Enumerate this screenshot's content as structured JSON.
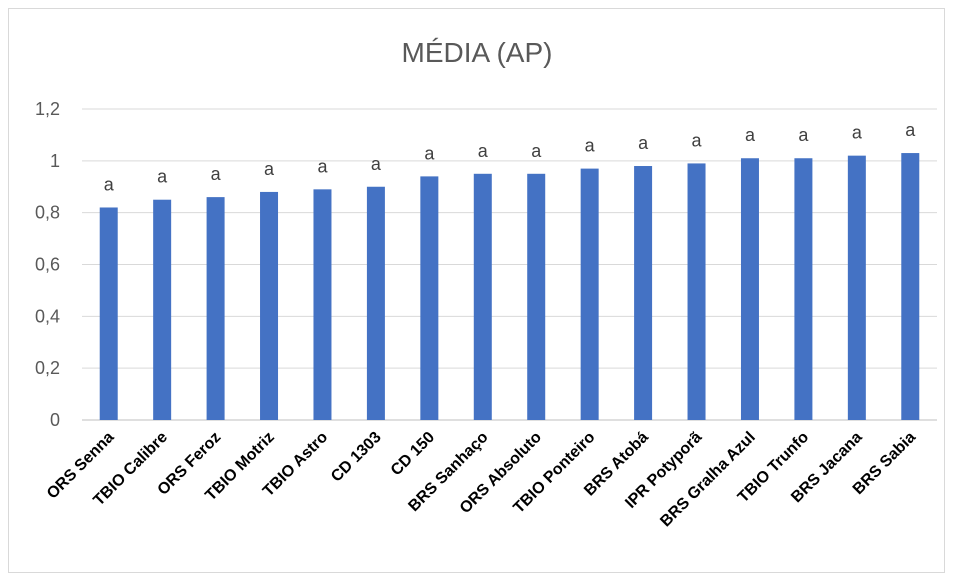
{
  "chart_data": {
    "type": "bar",
    "title": "MÉDIA (AP)",
    "xlabel": "",
    "ylabel": "",
    "ylim": [
      0,
      1.2
    ],
    "y_ticks": [
      "0",
      "0,2",
      "0,4",
      "0,6",
      "0,8",
      "1",
      "1,2"
    ],
    "y_tick_values": [
      0,
      0.2,
      0.4,
      0.6,
      0.8,
      1.0,
      1.2
    ],
    "grid": true,
    "bar_color": "#4472c4",
    "categories": [
      "ORS Senna",
      "TBIO Calibre",
      "ORS Feroz",
      "TBIO Motriz",
      "TBIO Astro",
      "CD 1303",
      "CD 150",
      "BRS Sanhaço",
      "ORS Absoluto",
      "TBIO Ponteiro",
      "BRS Atobá",
      "IPR Potyporã",
      "BRS Gralha Azul",
      "TBIO Trunfo",
      "BRS Jacana",
      "BRS Sabia"
    ],
    "values": [
      0.82,
      0.85,
      0.86,
      0.88,
      0.89,
      0.9,
      0.94,
      0.95,
      0.95,
      0.97,
      0.98,
      0.99,
      1.01,
      1.01,
      1.02,
      1.03
    ],
    "data_labels": [
      "a",
      "a",
      "a",
      "a",
      "a",
      "a",
      "a",
      "a",
      "a",
      "a",
      "a",
      "a",
      "a",
      "a",
      "a",
      "a"
    ]
  }
}
